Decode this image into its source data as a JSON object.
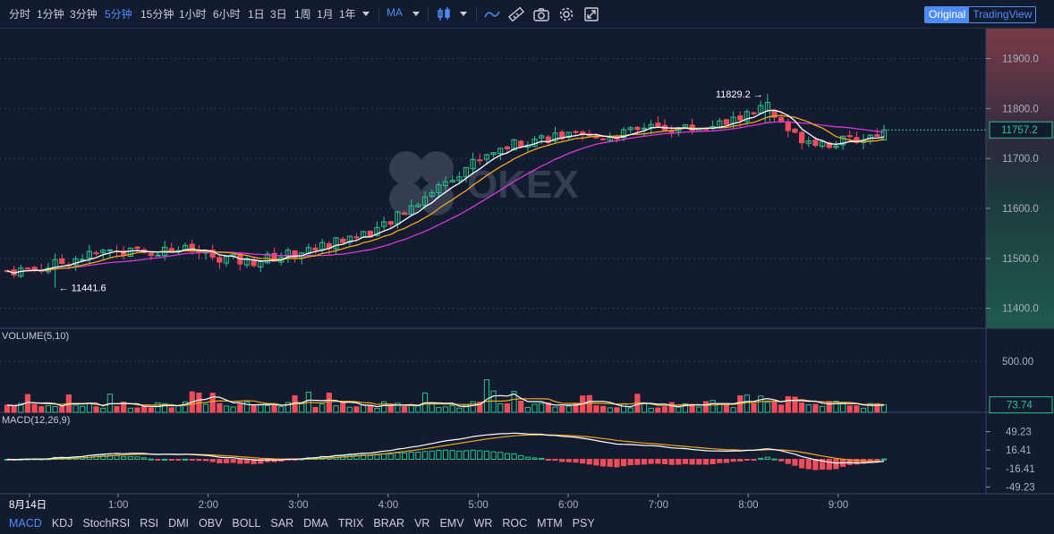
{
  "timeframes": [
    {
      "label": "分时"
    },
    {
      "label": "1分钟"
    },
    {
      "label": "3分钟"
    },
    {
      "label": "5分钟",
      "active": true
    },
    {
      "label": "15分钟"
    },
    {
      "label": "1小时"
    },
    {
      "label": "6小时"
    },
    {
      "label": "1日"
    },
    {
      "label": "3日"
    },
    {
      "label": "1周"
    },
    {
      "label": "1月"
    },
    {
      "label": "1年"
    }
  ],
  "indicator_menu_label": "MA",
  "modes": {
    "original": "Original",
    "tradingview": "TradingView"
  },
  "watermark": "OKEX",
  "colors": {
    "up": "#26a17b",
    "up_bright": "#2bc48a",
    "down": "#ef4d5a",
    "ma_white": "#ffffff",
    "ma_orange": "#f0a81a",
    "ma_magenta": "#d63ad6",
    "accent": "#4d8cf5"
  },
  "price_axis": {
    "ticks": [
      11900.0,
      11800.0,
      11700.0,
      11600.0,
      11500.0,
      11400.0
    ],
    "tick_labels": [
      "11900.0",
      "11800.0",
      "11700.0",
      "11600.0",
      "11500.0",
      "11400.0"
    ],
    "last_price": "11757.2",
    "high_label": "11829.2",
    "low_label": "11441.6"
  },
  "volume": {
    "title": "VOLUME(5,10)",
    "tick_label": "500.00",
    "last_label": "73.74"
  },
  "macd": {
    "title": "MACD(12,26,9)",
    "tick_labels": [
      "49.23",
      "16.41",
      "-16.41",
      "-49.23"
    ]
  },
  "time_axis": {
    "labels": [
      "8月14日",
      "1:00",
      "2:00",
      "3:00",
      "4:00",
      "5:00",
      "6:00",
      "7:00",
      "8:00",
      "9:00"
    ]
  },
  "indicators": [
    {
      "label": "MACD",
      "active": true
    },
    {
      "label": "KDJ"
    },
    {
      "label": "StochRSI"
    },
    {
      "label": "RSI"
    },
    {
      "label": "DMI"
    },
    {
      "label": "OBV"
    },
    {
      "label": "BOLL"
    },
    {
      "label": "SAR"
    },
    {
      "label": "DMA"
    },
    {
      "label": "TRIX"
    },
    {
      "label": "BRAR"
    },
    {
      "label": "VR"
    },
    {
      "label": "EMV"
    },
    {
      "label": "WR"
    },
    {
      "label": "ROC"
    },
    {
      "label": "MTM"
    },
    {
      "label": "PSY"
    }
  ],
  "chart_data": {
    "type": "candlestick",
    "interval": "5m",
    "anchors": [
      [
        0,
        11475
      ],
      [
        5,
        11480
      ],
      [
        10,
        11500
      ],
      [
        15,
        11515
      ],
      [
        20,
        11512
      ],
      [
        25,
        11520
      ],
      [
        30,
        11505
      ],
      [
        35,
        11492
      ],
      [
        40,
        11505
      ],
      [
        45,
        11520
      ],
      [
        50,
        11542
      ],
      [
        55,
        11562
      ],
      [
        60,
        11615
      ],
      [
        65,
        11665
      ],
      [
        70,
        11710
      ],
      [
        75,
        11735
      ],
      [
        80,
        11745
      ],
      [
        85,
        11740
      ],
      [
        90,
        11750
      ],
      [
        95,
        11762
      ],
      [
        100,
        11760
      ],
      [
        105,
        11770
      ],
      [
        110,
        11800
      ],
      [
        115,
        11745
      ],
      [
        120,
        11730
      ],
      [
        125,
        11740
      ],
      [
        128,
        11757
      ]
    ],
    "price_range": [
      11360,
      11960
    ],
    "volume_range": [
      0,
      650
    ],
    "macd_range": [
      -55,
      55
    ],
    "high": 11829.2,
    "low": 11441.6,
    "last": 11757.2
  }
}
